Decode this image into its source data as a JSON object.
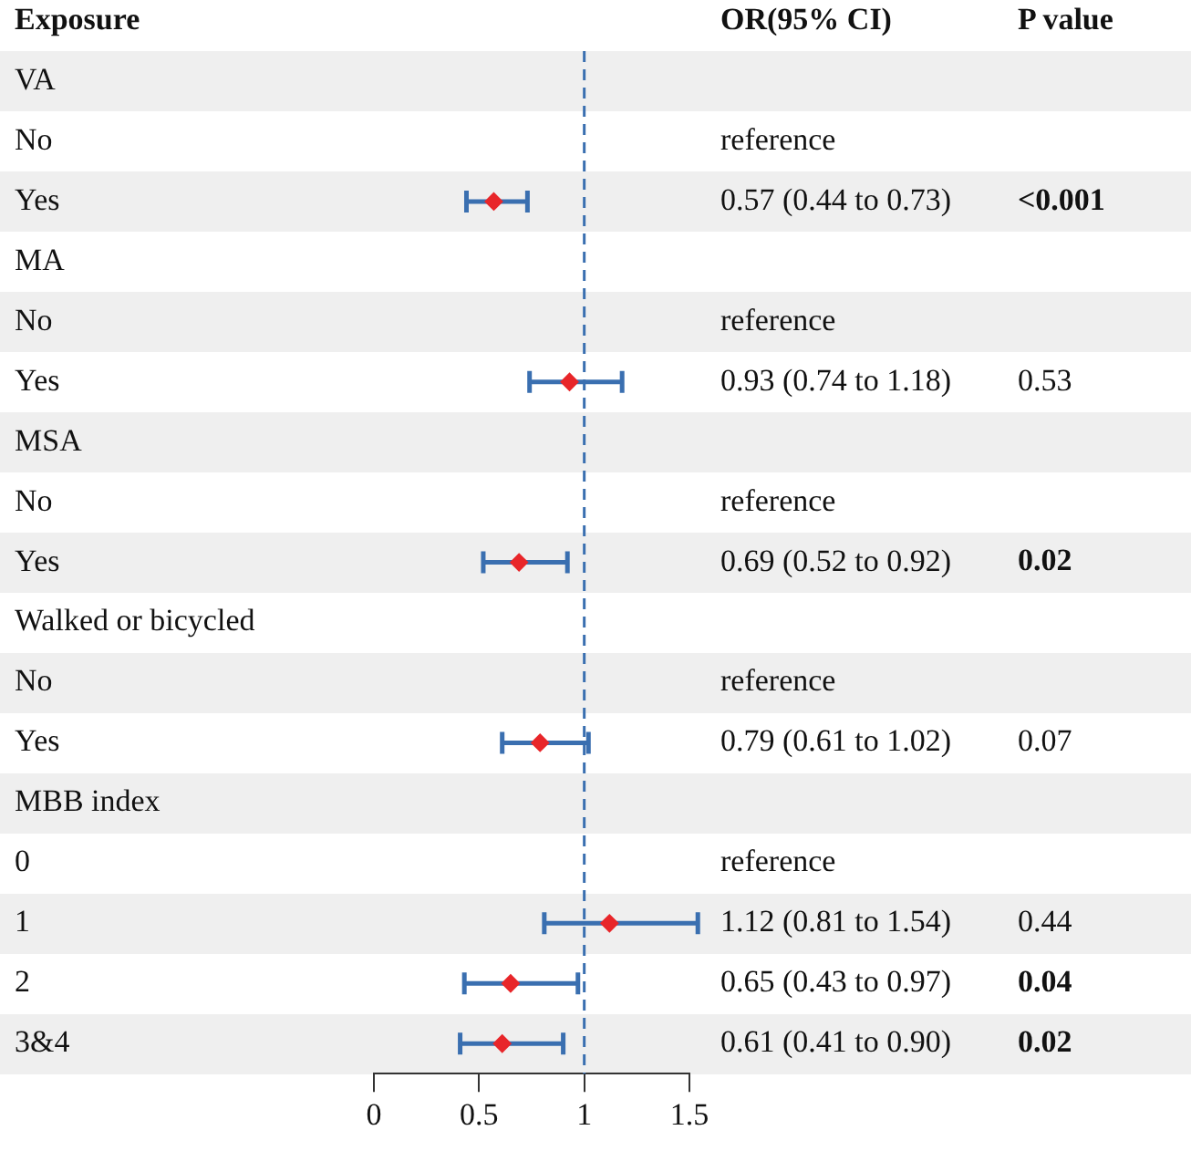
{
  "chart_data": {
    "type": "scatter",
    "ylabel": "Exposure",
    "categories": [
      "VA",
      "No",
      "Yes",
      "MA",
      "No",
      "Yes",
      "MSA",
      "No",
      "Yes",
      "Walked or bicycled",
      "No",
      "Yes",
      "MBB index",
      "0",
      "1",
      "2",
      "3&4"
    ],
    "values": [
      null,
      null,
      0.57,
      null,
      null,
      0.93,
      null,
      null,
      0.69,
      null,
      null,
      0.79,
      null,
      null,
      1.12,
      0.65,
      0.61
    ],
    "errors": [
      null,
      null,
      [
        0.44,
        0.73
      ],
      null,
      null,
      [
        0.74,
        1.18
      ],
      null,
      null,
      [
        0.52,
        0.92
      ],
      null,
      null,
      [
        0.61,
        1.02
      ],
      null,
      null,
      [
        0.81,
        1.54
      ],
      [
        0.43,
        0.97
      ],
      [
        0.41,
        0.9
      ]
    ],
    "value_labels": [
      null,
      "reference",
      "0.57 (0.44 to 0.73)",
      null,
      "reference",
      "0.93 (0.74 to 1.18)",
      null,
      "reference",
      "0.69 (0.52 to 0.92)",
      null,
      "reference",
      "0.79 (0.61 to 1.02)",
      null,
      "reference",
      "1.12 (0.81 to 1.54)",
      "0.65 (0.43 to 0.97)",
      "0.61 (0.41 to 0.90)"
    ],
    "color": "#e8262a",
    "marker": "diamond",
    "orientation": "horizontal",
    "xlim": [
      0,
      1.5
    ],
    "xticks": [
      {
        "value": 0,
        "label": "0"
      },
      {
        "value": 0.5,
        "label": "0.5"
      },
      {
        "value": 1,
        "label": "1"
      },
      {
        "value": 1.5,
        "label": "1.5"
      }
    ],
    "ref_lines": [
      {
        "axis": "x",
        "value": 1,
        "color": "#3a6fb0",
        "line_style": "dashed"
      }
    ],
    "annotations": [
      "OR(95% CI)",
      "P value",
      "<0.001",
      "0.53",
      "0.02",
      "0.07",
      "0.44",
      "0.04",
      "0.02"
    ]
  }
}
